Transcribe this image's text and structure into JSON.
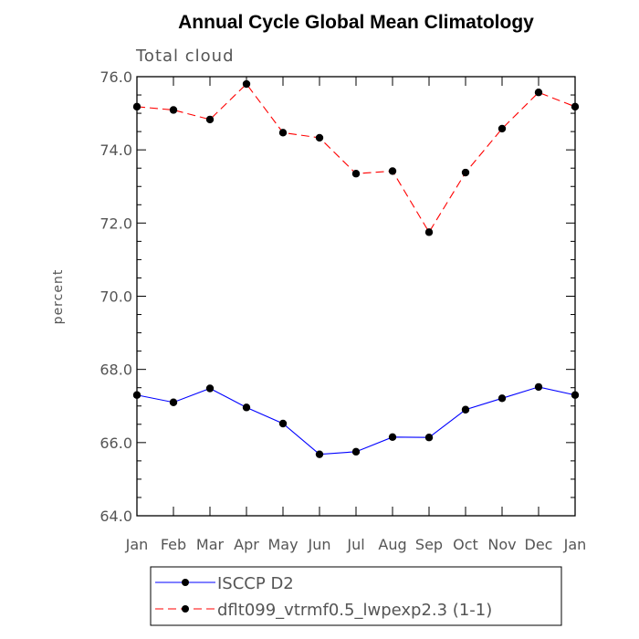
{
  "chart_data": {
    "type": "line",
    "title": "Annual Cycle Global Mean Climatology",
    "subtitle": "Total cloud",
    "ylabel": "percent",
    "xlabel": "",
    "categories": [
      "Jan",
      "Feb",
      "Mar",
      "Apr",
      "May",
      "Jun",
      "Jul",
      "Aug",
      "Sep",
      "Oct",
      "Nov",
      "Dec",
      "Jan"
    ],
    "ylim": [
      64.0,
      76.0
    ],
    "yticks": [
      "64.0",
      "66.0",
      "68.0",
      "70.0",
      "72.0",
      "74.0",
      "76.0"
    ],
    "ytick_values": [
      64,
      66,
      68,
      70,
      72,
      74,
      76
    ],
    "grid": false,
    "legend_position": "bottom",
    "series": [
      {
        "name": "ISCCP D2",
        "color": "#0000ff",
        "line_style": "solid",
        "marker": "filled-circle",
        "values": [
          67.3,
          67.1,
          67.48,
          66.96,
          66.52,
          65.68,
          65.75,
          66.15,
          66.14,
          66.9,
          67.21,
          67.52,
          67.3
        ]
      },
      {
        "name": "dflt099_vtrmf0.5_lwpexp2.3 (1-1)",
        "color": "#ff0000",
        "line_style": "dashed",
        "marker": "filled-circle",
        "values": [
          75.18,
          75.09,
          74.83,
          75.8,
          74.47,
          74.33,
          73.35,
          73.42,
          71.75,
          73.38,
          74.58,
          75.57,
          75.18
        ]
      }
    ]
  }
}
